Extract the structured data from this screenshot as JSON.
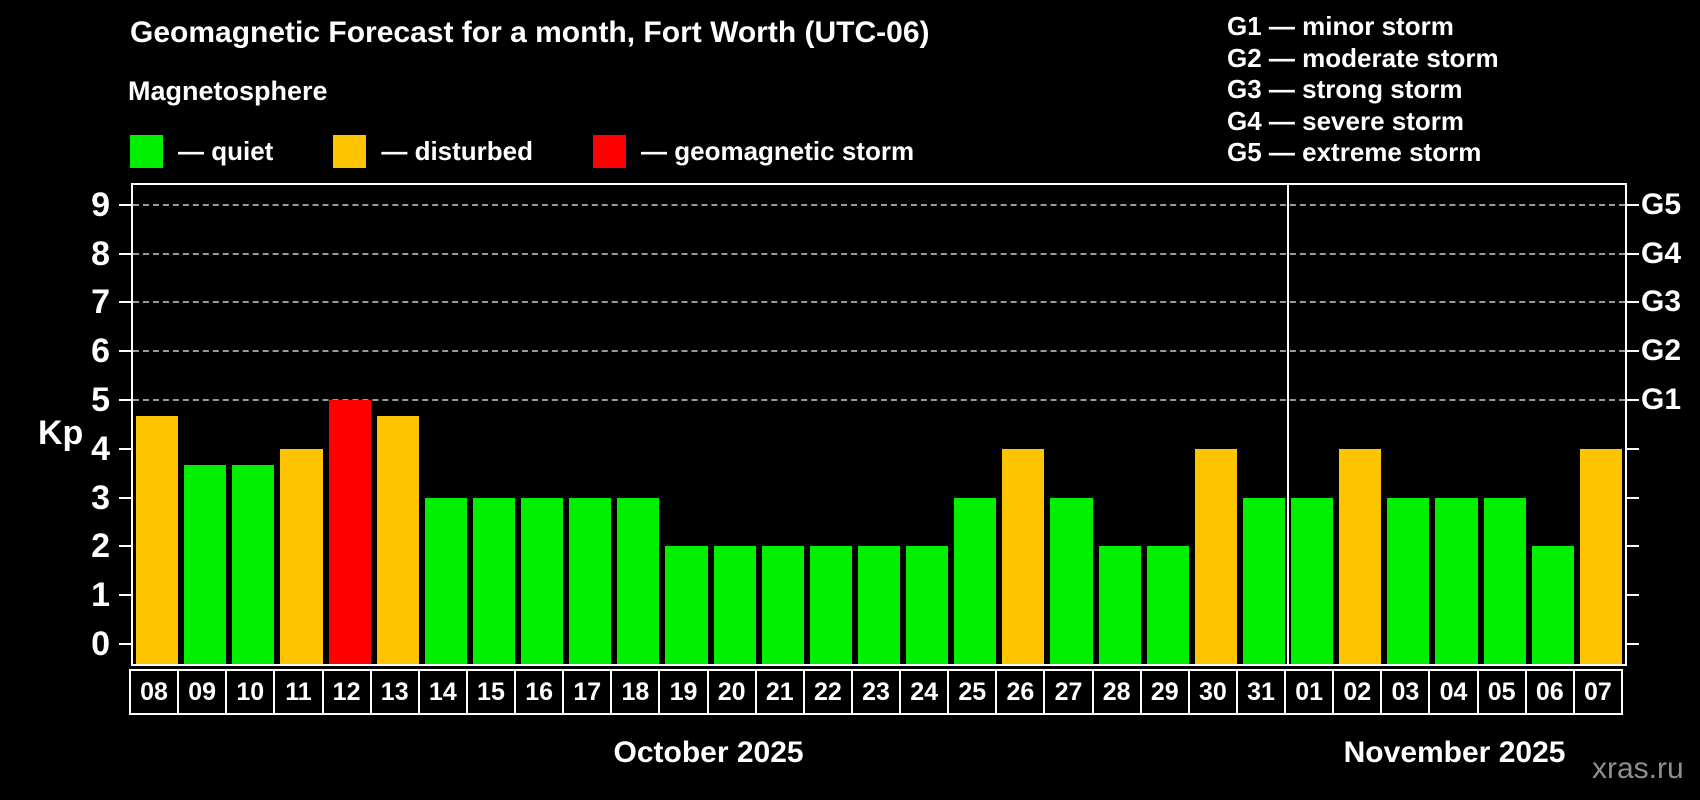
{
  "header": {
    "title": "Geomagnetic Forecast for a month, Fort Worth (UTC-06)",
    "subtitle": "Magnetosphere",
    "watermark": "xras.ru"
  },
  "legend": {
    "items": [
      {
        "status": "quiet",
        "label": "— quiet"
      },
      {
        "status": "disturbed",
        "label": "— disturbed"
      },
      {
        "status": "storm",
        "label": "— geomagnetic storm"
      }
    ]
  },
  "g_scale_legend": {
    "lines": [
      "G1 — minor storm",
      "G2 — moderate storm",
      "G3 — strong storm",
      "G4 — severe storm",
      "G5 — extreme storm"
    ]
  },
  "chart_data": {
    "type": "bar",
    "title": "Geomagnetic Forecast for a month, Fort Worth (UTC-06)",
    "ylabel": "Kp",
    "ylim": [
      0,
      9
    ],
    "yticks": [
      0,
      1,
      2,
      3,
      4,
      5,
      6,
      7,
      8,
      9
    ],
    "gridlines": [
      5,
      6,
      7,
      8,
      9
    ],
    "grid_style": "dashed",
    "legend_position": "top-left",
    "right_axis_labels": [
      {
        "value": 5,
        "label": "G1"
      },
      {
        "value": 6,
        "label": "G2"
      },
      {
        "value": 7,
        "label": "G3"
      },
      {
        "value": 8,
        "label": "G4"
      },
      {
        "value": 9,
        "label": "G5"
      }
    ],
    "colors": {
      "quiet": "#00f000",
      "disturbed": "#ffc400",
      "storm": "#fe0000"
    },
    "months": [
      {
        "label": "October 2025",
        "days": 24
      },
      {
        "label": "November 2025",
        "days": 7
      }
    ],
    "bars": [
      {
        "day": "08",
        "kp": 4.67,
        "status": "disturbed"
      },
      {
        "day": "09",
        "kp": 3.67,
        "status": "quiet"
      },
      {
        "day": "10",
        "kp": 3.67,
        "status": "quiet"
      },
      {
        "day": "11",
        "kp": 4.0,
        "status": "disturbed"
      },
      {
        "day": "12",
        "kp": 5.0,
        "status": "storm"
      },
      {
        "day": "13",
        "kp": 4.67,
        "status": "disturbed"
      },
      {
        "day": "14",
        "kp": 3.0,
        "status": "quiet"
      },
      {
        "day": "15",
        "kp": 3.0,
        "status": "quiet"
      },
      {
        "day": "16",
        "kp": 3.0,
        "status": "quiet"
      },
      {
        "day": "17",
        "kp": 3.0,
        "status": "quiet"
      },
      {
        "day": "18",
        "kp": 3.0,
        "status": "quiet"
      },
      {
        "day": "19",
        "kp": 2.0,
        "status": "quiet"
      },
      {
        "day": "20",
        "kp": 2.0,
        "status": "quiet"
      },
      {
        "day": "21",
        "kp": 2.0,
        "status": "quiet"
      },
      {
        "day": "22",
        "kp": 2.0,
        "status": "quiet"
      },
      {
        "day": "23",
        "kp": 2.0,
        "status": "quiet"
      },
      {
        "day": "24",
        "kp": 2.0,
        "status": "quiet"
      },
      {
        "day": "25",
        "kp": 3.0,
        "status": "quiet"
      },
      {
        "day": "26",
        "kp": 4.0,
        "status": "disturbed"
      },
      {
        "day": "27",
        "kp": 3.0,
        "status": "quiet"
      },
      {
        "day": "28",
        "kp": 2.0,
        "status": "quiet"
      },
      {
        "day": "29",
        "kp": 2.0,
        "status": "quiet"
      },
      {
        "day": "30",
        "kp": 4.0,
        "status": "disturbed"
      },
      {
        "day": "31",
        "kp": 3.0,
        "status": "quiet"
      },
      {
        "day": "01",
        "kp": 3.0,
        "status": "quiet"
      },
      {
        "day": "02",
        "kp": 4.0,
        "status": "disturbed"
      },
      {
        "day": "03",
        "kp": 3.0,
        "status": "quiet"
      },
      {
        "day": "04",
        "kp": 3.0,
        "status": "quiet"
      },
      {
        "day": "05",
        "kp": 3.0,
        "status": "quiet"
      },
      {
        "day": "06",
        "kp": 2.0,
        "status": "quiet"
      },
      {
        "day": "07",
        "kp": 4.0,
        "status": "disturbed"
      }
    ]
  }
}
